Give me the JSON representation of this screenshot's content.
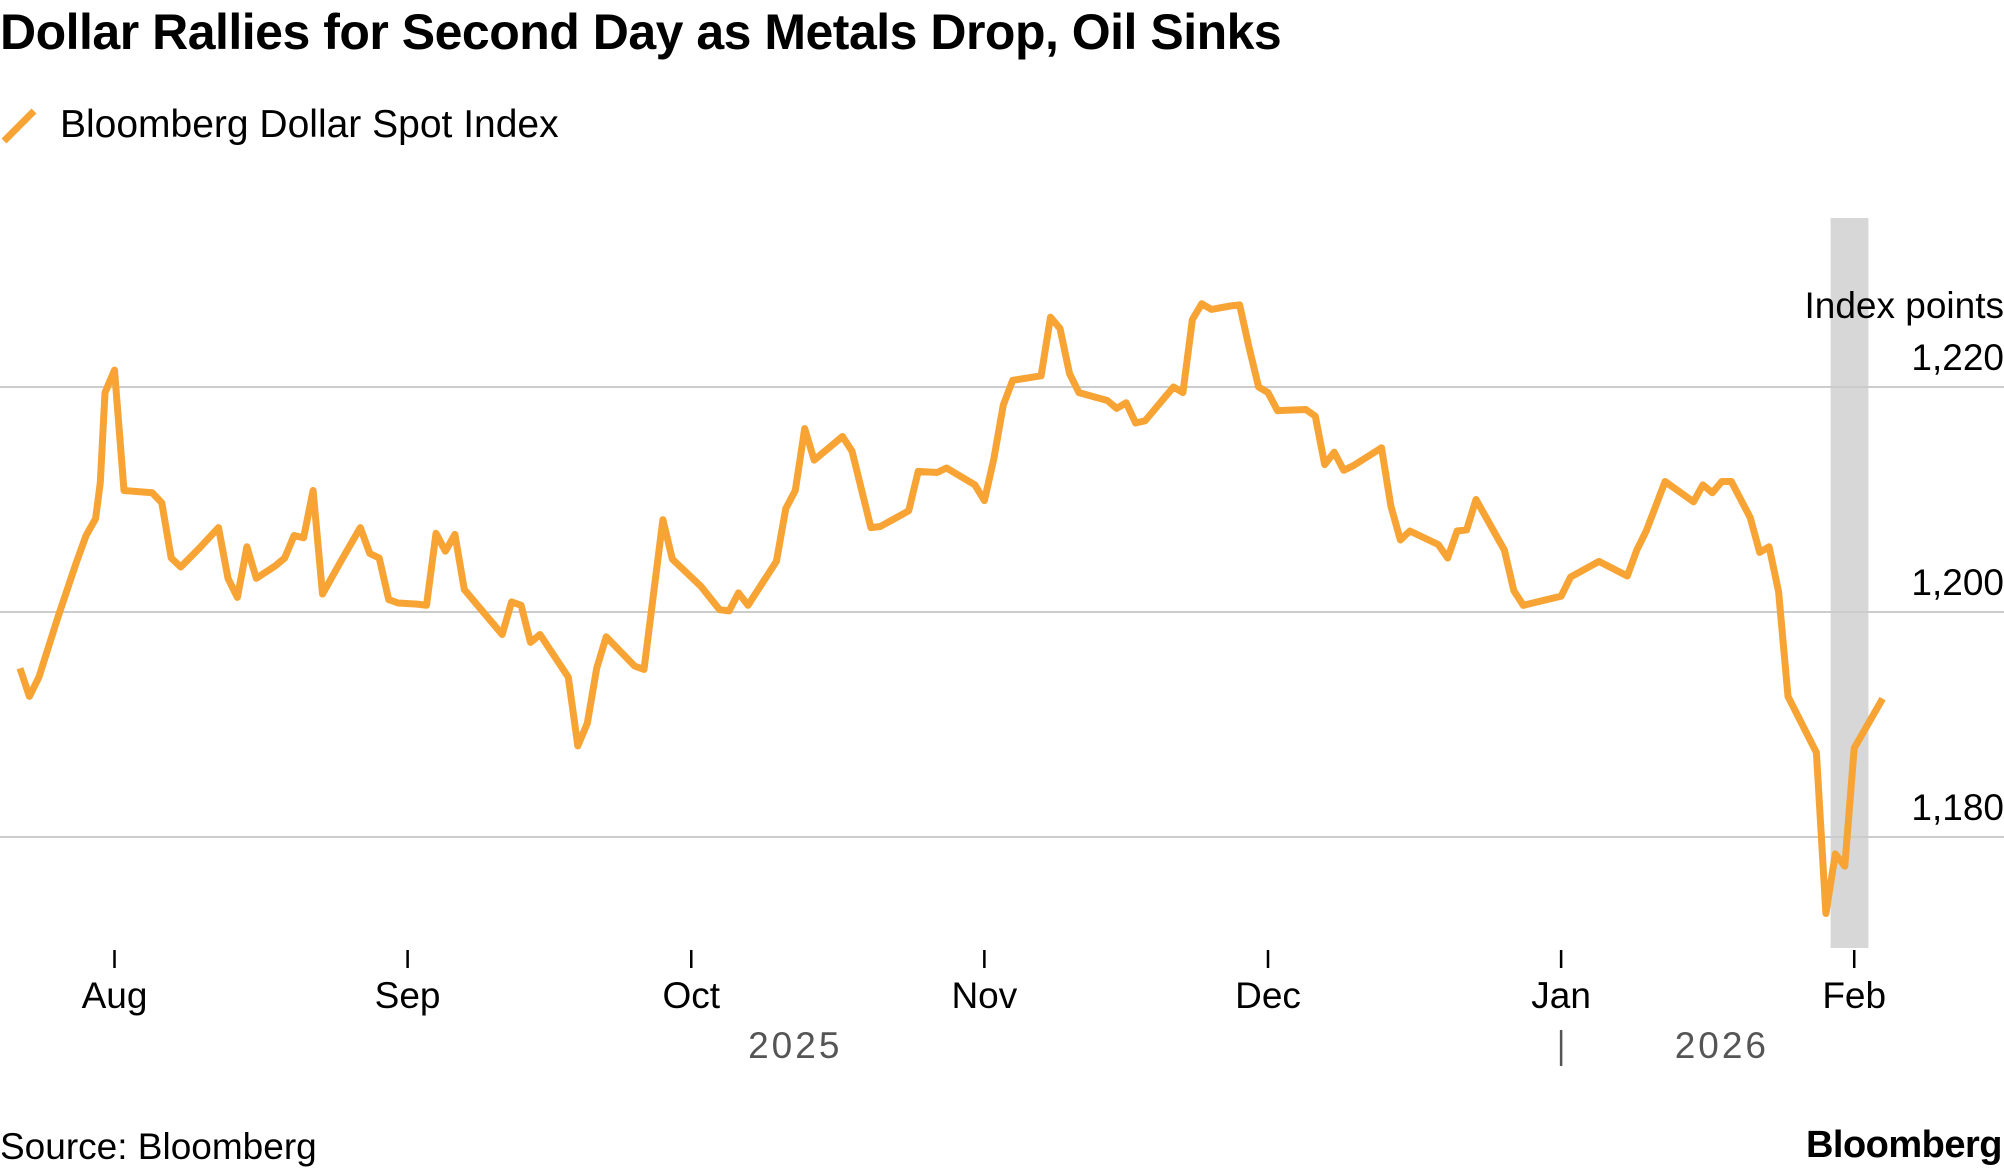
{
  "chart_data": {
    "type": "line",
    "title": "Dollar Rallies for Second Day as Metals Drop, Oil Sinks",
    "legend": [
      "Bloomberg Dollar Spot Index"
    ],
    "ylabel": "Index points",
    "ylim": [
      1171,
      1235
    ],
    "yticks": [
      1180,
      1200,
      1220
    ],
    "ytick_labels": [
      "1,180",
      "1,200",
      "1,220"
    ],
    "x_range_days": [
      -5,
      192
    ],
    "xticks": [
      {
        "label": "Aug",
        "day": 0
      },
      {
        "label": "Sep",
        "day": 31
      },
      {
        "label": "Oct",
        "day": 61
      },
      {
        "label": "Nov",
        "day": 92
      },
      {
        "label": "Dec",
        "day": 122
      },
      {
        "label": "Jan",
        "day": 153
      },
      {
        "label": "Feb",
        "day": 184
      }
    ],
    "years": [
      {
        "label": "2025",
        "day": 72
      },
      {
        "label": "2026",
        "day": 170
      }
    ],
    "year_divider_day": 153,
    "highlight_days": [
      181.5,
      185.5
    ],
    "series": [
      {
        "name": "Bloomberg Dollar Spot Index",
        "color": "#f7a435",
        "points": [
          [
            -10,
            1195.0
          ],
          [
            -9,
            1192.5
          ],
          [
            -8,
            1194.2
          ],
          [
            -6,
            1199.5
          ],
          [
            -4,
            1204.5
          ],
          [
            -3,
            1206.8
          ],
          [
            -2,
            1208.3
          ],
          [
            -1.5,
            1211.5
          ],
          [
            -1,
            1219.5
          ],
          [
            0,
            1221.5
          ],
          [
            1,
            1210.8
          ],
          [
            4,
            1210.6
          ],
          [
            5,
            1209.7
          ],
          [
            6,
            1204.8
          ],
          [
            7,
            1204.0
          ],
          [
            9,
            1205.7
          ],
          [
            11,
            1207.5
          ],
          [
            12,
            1203.0
          ],
          [
            13,
            1201.3
          ],
          [
            14,
            1205.8
          ],
          [
            15,
            1203.0
          ],
          [
            17,
            1204.1
          ],
          [
            18,
            1204.8
          ],
          [
            19,
            1206.8
          ],
          [
            20,
            1206.6
          ],
          [
            21,
            1210.8
          ],
          [
            22,
            1201.6
          ],
          [
            24,
            1204.6
          ],
          [
            26,
            1207.5
          ],
          [
            27,
            1205.2
          ],
          [
            28,
            1204.8
          ],
          [
            29,
            1201.1
          ],
          [
            30,
            1200.8
          ],
          [
            32,
            1200.7
          ],
          [
            33,
            1200.6
          ],
          [
            34,
            1207.0
          ],
          [
            35,
            1205.4
          ],
          [
            36,
            1206.9
          ],
          [
            37,
            1202.0
          ],
          [
            39,
            1200.0
          ],
          [
            41,
            1198.0
          ],
          [
            42,
            1200.9
          ],
          [
            43,
            1200.6
          ],
          [
            44,
            1197.3
          ],
          [
            45,
            1198.0
          ],
          [
            48,
            1194.2
          ],
          [
            49,
            1188.1
          ],
          [
            50,
            1190.1
          ],
          [
            51,
            1195.0
          ],
          [
            52,
            1197.8
          ],
          [
            55,
            1195.2
          ],
          [
            56,
            1194.9
          ],
          [
            58,
            1208.2
          ],
          [
            59,
            1204.7
          ],
          [
            62,
            1202.3
          ],
          [
            64,
            1200.2
          ],
          [
            65,
            1200.1
          ],
          [
            66,
            1201.7
          ],
          [
            67,
            1200.6
          ],
          [
            70,
            1204.5
          ],
          [
            71,
            1209.2
          ],
          [
            72,
            1210.8
          ],
          [
            73,
            1216.3
          ],
          [
            74,
            1213.5
          ],
          [
            77,
            1215.6
          ],
          [
            78,
            1214.3
          ],
          [
            80,
            1207.5
          ],
          [
            81,
            1207.6
          ],
          [
            84,
            1209.0
          ],
          [
            85,
            1212.5
          ],
          [
            87,
            1212.4
          ],
          [
            88,
            1212.8
          ],
          [
            91,
            1211.3
          ],
          [
            92,
            1209.9
          ],
          [
            93,
            1213.6
          ],
          [
            94,
            1218.4
          ],
          [
            95,
            1220.6
          ],
          [
            98,
            1221.0
          ],
          [
            99,
            1226.2
          ],
          [
            100,
            1225.2
          ],
          [
            101,
            1221.2
          ],
          [
            102,
            1219.5
          ],
          [
            105,
            1218.8
          ],
          [
            106,
            1218.1
          ],
          [
            107,
            1218.6
          ],
          [
            108,
            1216.8
          ],
          [
            109,
            1217.0
          ],
          [
            111,
            1219.0
          ],
          [
            112,
            1220.0
          ],
          [
            113,
            1219.5
          ],
          [
            114,
            1226.0
          ],
          [
            115,
            1227.4
          ],
          [
            116,
            1226.9
          ],
          [
            118,
            1227.2
          ],
          [
            119,
            1227.3
          ],
          [
            120,
            1223.5
          ],
          [
            121,
            1220.0
          ],
          [
            122,
            1219.5
          ],
          [
            123,
            1217.9
          ],
          [
            126,
            1218.0
          ],
          [
            127,
            1217.4
          ],
          [
            128,
            1213.1
          ],
          [
            129,
            1214.2
          ],
          [
            130,
            1212.6
          ],
          [
            131,
            1213.0
          ],
          [
            134,
            1214.6
          ],
          [
            135,
            1209.4
          ],
          [
            136,
            1206.4
          ],
          [
            137,
            1207.2
          ],
          [
            140,
            1206.0
          ],
          [
            141,
            1204.8
          ],
          [
            142,
            1207.2
          ],
          [
            143,
            1207.3
          ],
          [
            144,
            1210.0
          ],
          [
            147,
            1205.5
          ],
          [
            148,
            1201.9
          ],
          [
            149,
            1200.6
          ],
          [
            150,
            1200.8
          ],
          [
            153,
            1201.4
          ],
          [
            154,
            1203.1
          ],
          [
            157,
            1204.5
          ],
          [
            160,
            1203.2
          ],
          [
            161,
            1205.5
          ],
          [
            162,
            1207.2
          ],
          [
            164,
            1211.6
          ],
          [
            167,
            1209.8
          ],
          [
            168,
            1211.3
          ],
          [
            169,
            1210.6
          ],
          [
            170,
            1211.6
          ],
          [
            171,
            1211.6
          ],
          [
            173,
            1208.4
          ],
          [
            174,
            1205.3
          ],
          [
            175,
            1205.8
          ],
          [
            176,
            1201.8
          ],
          [
            177,
            1192.5
          ],
          [
            180,
            1187.5
          ],
          [
            181,
            1173.2
          ],
          [
            182,
            1178.5
          ],
          [
            183,
            1177.4
          ],
          [
            184,
            1187.9
          ],
          [
            187,
            1192.3
          ]
        ]
      }
    ]
  },
  "footer": {
    "source": "Source: Bloomberg",
    "brand": "Bloomberg"
  }
}
